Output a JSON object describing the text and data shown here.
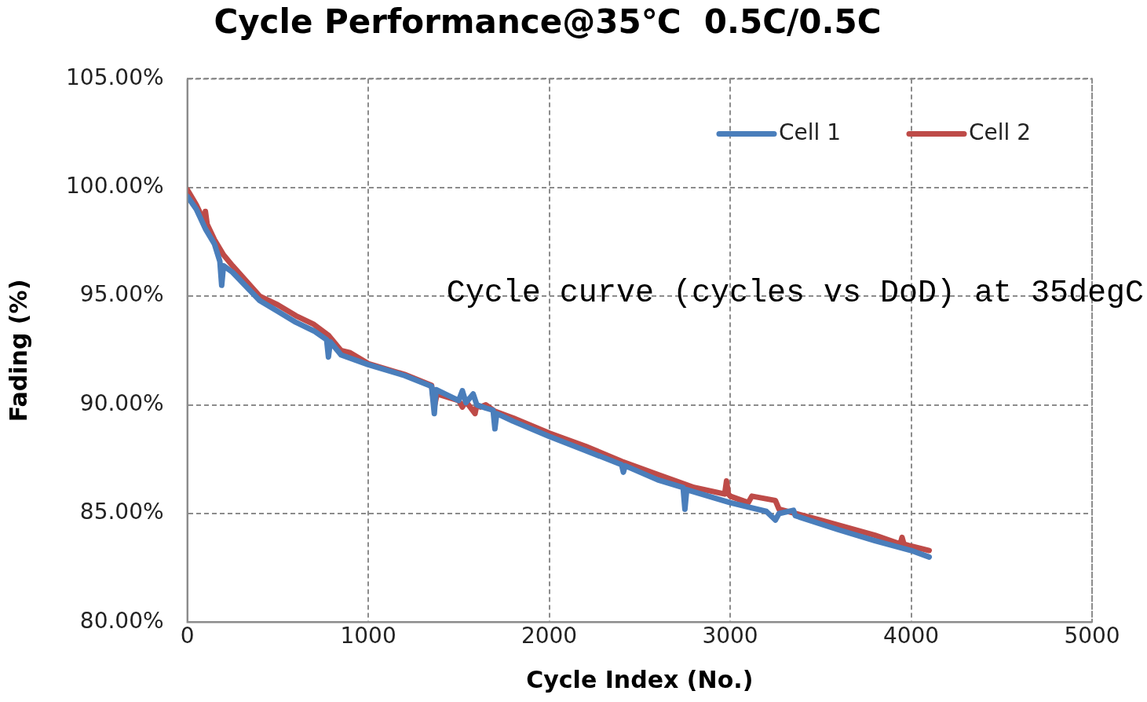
{
  "chart_data": {
    "type": "line",
    "title": "Cycle Performance@35℃  0.5C/0.5C",
    "xlabel": "Cycle Index (No.)",
    "ylabel": "Fading (%)",
    "annotations": [
      "Cycle curve (cycles vs DoD) at 35degC"
    ],
    "xlim": [
      0,
      5000
    ],
    "xticks": [
      0,
      1000,
      2000,
      3000,
      4000,
      5000
    ],
    "ylim": [
      80,
      105
    ],
    "yticks": [
      {
        "value": 80,
        "label": "80.00%"
      },
      {
        "value": 85,
        "label": "85.00%"
      },
      {
        "value": 90,
        "label": "90.00%"
      },
      {
        "value": 95,
        "label": "95.00%"
      },
      {
        "value": 100,
        "label": "100.00%"
      },
      {
        "value": 105,
        "label": "105.00%"
      }
    ],
    "grid": true,
    "legend": "top right",
    "marker": "none",
    "line_style": "solid",
    "series": [
      {
        "name": "Cell 1",
        "color": "#4a7ebb",
        "x": [
          0,
          50,
          100,
          150,
          180,
          190,
          200,
          250,
          400,
          500,
          600,
          700,
          770,
          780,
          790,
          850,
          1000,
          1200,
          1350,
          1365,
          1375,
          1500,
          1520,
          1540,
          1580,
          1600,
          1650,
          1690,
          1700,
          1710,
          1800,
          2000,
          2200,
          2400,
          2410,
          2420,
          2600,
          2740,
          2750,
          2760,
          3000,
          3200,
          3250,
          3270,
          3350,
          3360,
          3600,
          3800,
          4000,
          4100
        ],
        "values": [
          99.6,
          99.0,
          98.1,
          97.4,
          96.6,
          95.5,
          96.4,
          96.1,
          94.8,
          94.3,
          93.8,
          93.4,
          93.0,
          92.2,
          92.9,
          92.3,
          91.85,
          91.35,
          90.85,
          89.6,
          90.7,
          90.2,
          90.65,
          90.1,
          90.5,
          90.0,
          89.85,
          89.75,
          88.9,
          89.6,
          89.25,
          88.55,
          87.9,
          87.25,
          86.9,
          87.2,
          86.55,
          86.2,
          85.2,
          86.1,
          85.5,
          85.1,
          84.7,
          85.0,
          85.15,
          84.9,
          84.25,
          83.75,
          83.3,
          83.0
        ]
      },
      {
        "name": "Cell 2",
        "color": "#be4b48",
        "x": [
          0,
          50,
          95,
          100,
          110,
          150,
          200,
          250,
          400,
          500,
          600,
          700,
          780,
          850,
          900,
          1000,
          1200,
          1350,
          1365,
          1380,
          1500,
          1520,
          1540,
          1590,
          1600,
          1620,
          1650,
          1700,
          1800,
          2000,
          2200,
          2400,
          2600,
          2800,
          2970,
          2980,
          2990,
          3000,
          3100,
          3120,
          3250,
          3270,
          3500,
          3800,
          3940,
          3950,
          3960,
          4000,
          4100
        ],
        "values": [
          99.9,
          99.2,
          98.4,
          98.9,
          98.3,
          97.6,
          96.9,
          96.4,
          95.0,
          94.6,
          94.1,
          93.7,
          93.2,
          92.5,
          92.4,
          91.9,
          91.4,
          90.9,
          89.9,
          90.5,
          90.2,
          89.9,
          90.15,
          89.6,
          90.0,
          89.9,
          90.0,
          89.7,
          89.4,
          88.7,
          88.1,
          87.4,
          86.8,
          86.2,
          85.9,
          86.5,
          85.9,
          85.8,
          85.5,
          85.8,
          85.6,
          85.2,
          84.7,
          84.0,
          83.6,
          83.9,
          83.6,
          83.5,
          83.3
        ]
      }
    ]
  }
}
